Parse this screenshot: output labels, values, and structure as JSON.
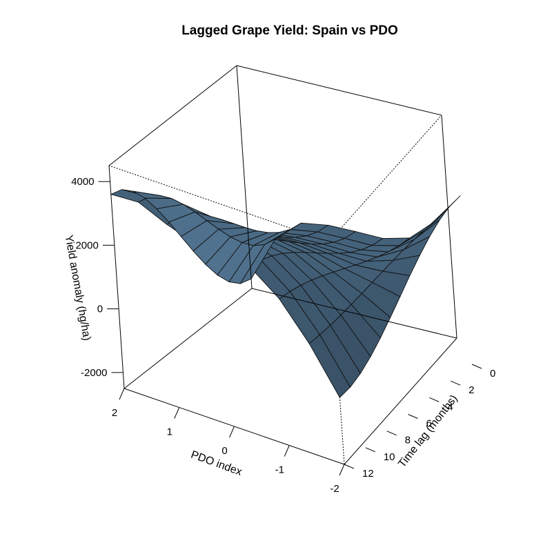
{
  "chart_data": {
    "type": "surface3d",
    "title": "Lagged Grape Yield: Spain vs PDO",
    "xlabel": "PDO index",
    "ylabel": "Time lag (months)",
    "zlabel": "Yield anomaly (hg/ha)",
    "x_ticks": [
      "2",
      "1",
      "0",
      "-1",
      "-2"
    ],
    "y_ticks": [
      "0",
      "2",
      "4",
      "6",
      "8",
      "10",
      "12"
    ],
    "z_ticks": [
      "4000",
      "2000",
      "0",
      "-2000"
    ],
    "xlim": [
      -2,
      2
    ],
    "ylim": [
      0,
      12
    ],
    "zlim": [
      -2500,
      4500
    ],
    "pdo_grid": [
      -2,
      -1.5,
      -1,
      -0.5,
      0,
      0.5,
      1,
      1.5,
      2
    ],
    "lag_grid": [
      0,
      1,
      2,
      3,
      4,
      5,
      6,
      7,
      8,
      9,
      10,
      11,
      12
    ],
    "yield_at_lag0": [
      2800,
      1700,
      870,
      560,
      480,
      380,
      150,
      -650,
      -2200
    ],
    "yield_at_lag12": [
      -400,
      1000,
      2100,
      2800,
      3000,
      2950,
      3250,
      3650,
      3600
    ],
    "surface_color": "#4a6a85",
    "grid": false
  }
}
